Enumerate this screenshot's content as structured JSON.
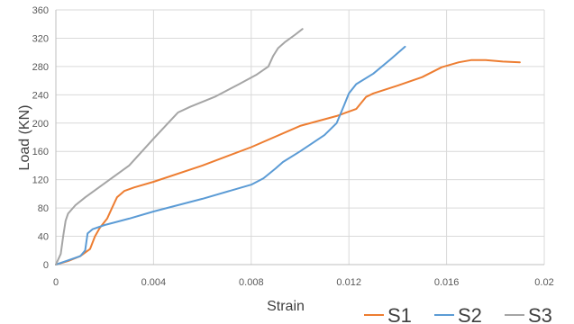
{
  "chart_data": {
    "type": "line",
    "title": "",
    "xlabel": "Strain",
    "ylabel": "Load (KN)",
    "xlim": [
      0,
      0.02
    ],
    "ylim": [
      0,
      360
    ],
    "x_ticks": [
      "0",
      "0.004",
      "0.008",
      "0.012",
      "0.016",
      "0.02"
    ],
    "y_ticks": [
      "0",
      "40",
      "80",
      "120",
      "160",
      "200",
      "240",
      "280",
      "320",
      "360"
    ],
    "grid": true,
    "legend_position": "bottom-right",
    "series": [
      {
        "name": "S1",
        "color": "#ED7D31",
        "points": [
          [
            0,
            0
          ],
          [
            0.0005,
            5
          ],
          [
            0.001,
            12
          ],
          [
            0.0014,
            22
          ],
          [
            0.0016,
            40
          ],
          [
            0.0018,
            52
          ],
          [
            0.0021,
            65
          ],
          [
            0.0023,
            80
          ],
          [
            0.0025,
            95
          ],
          [
            0.0028,
            104
          ],
          [
            0.0032,
            109
          ],
          [
            0.004,
            117
          ],
          [
            0.006,
            140
          ],
          [
            0.008,
            166
          ],
          [
            0.01,
            196
          ],
          [
            0.0115,
            210
          ],
          [
            0.0123,
            220
          ],
          [
            0.0127,
            237
          ],
          [
            0.013,
            242
          ],
          [
            0.014,
            253
          ],
          [
            0.015,
            265
          ],
          [
            0.0158,
            279
          ],
          [
            0.0165,
            286
          ],
          [
            0.017,
            289
          ],
          [
            0.0176,
            289
          ],
          [
            0.0183,
            287
          ],
          [
            0.019,
            286
          ]
        ]
      },
      {
        "name": "S2",
        "color": "#5B9BD5",
        "points": [
          [
            0,
            0
          ],
          [
            0.0005,
            6
          ],
          [
            0.001,
            12
          ],
          [
            0.0012,
            20
          ],
          [
            0.0013,
            44
          ],
          [
            0.0015,
            50
          ],
          [
            0.002,
            56
          ],
          [
            0.003,
            65
          ],
          [
            0.004,
            75
          ],
          [
            0.006,
            93
          ],
          [
            0.008,
            113
          ],
          [
            0.0085,
            122
          ],
          [
            0.009,
            136
          ],
          [
            0.0093,
            145
          ],
          [
            0.01,
            160
          ],
          [
            0.011,
            183
          ],
          [
            0.0115,
            200
          ],
          [
            0.0118,
            225
          ],
          [
            0.012,
            242
          ],
          [
            0.0123,
            255
          ],
          [
            0.013,
            270
          ],
          [
            0.0137,
            290
          ],
          [
            0.0143,
            308
          ]
        ]
      },
      {
        "name": "S3",
        "color": "#A5A5A5",
        "points": [
          [
            0,
            0
          ],
          [
            0.0002,
            15
          ],
          [
            0.0003,
            40
          ],
          [
            0.0004,
            62
          ],
          [
            0.0005,
            72
          ],
          [
            0.0008,
            84
          ],
          [
            0.0012,
            95
          ],
          [
            0.002,
            115
          ],
          [
            0.003,
            140
          ],
          [
            0.004,
            178
          ],
          [
            0.005,
            215
          ],
          [
            0.0055,
            223
          ],
          [
            0.0065,
            237
          ],
          [
            0.0075,
            255
          ],
          [
            0.0082,
            268
          ],
          [
            0.0087,
            280
          ],
          [
            0.0089,
            295
          ],
          [
            0.0091,
            306
          ],
          [
            0.0094,
            315
          ],
          [
            0.0098,
            325
          ],
          [
            0.0101,
            333
          ]
        ]
      }
    ]
  }
}
